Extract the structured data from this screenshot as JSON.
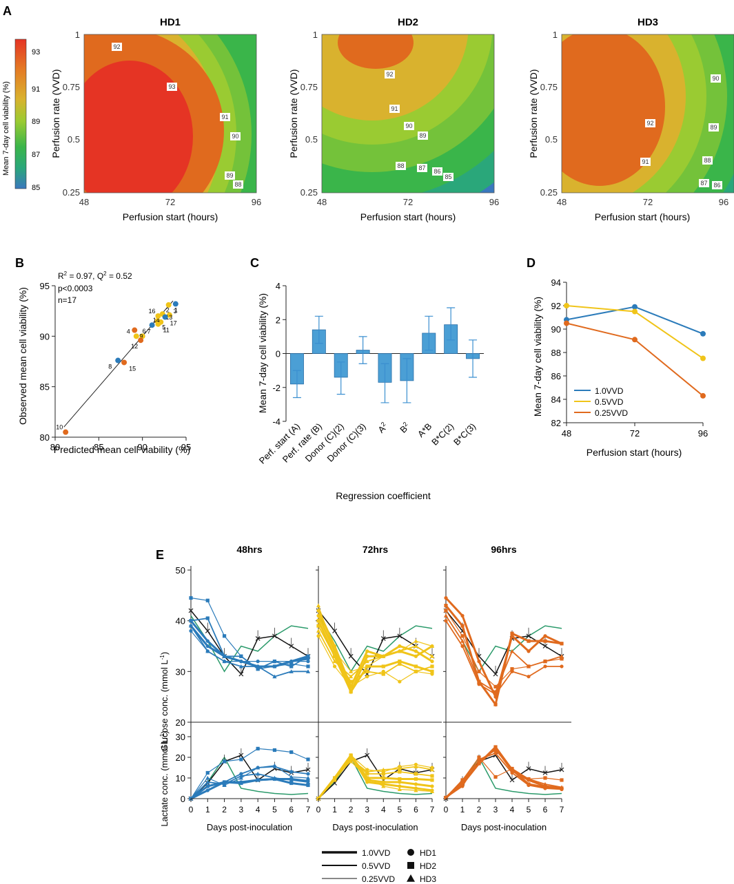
{
  "panels": {
    "A": "A",
    "B": "B",
    "C": "C",
    "D": "D",
    "E": "E"
  },
  "contour": {
    "colorbar": {
      "label": "Mean 7-day cell viability  (%)",
      "ticks": [
        "93",
        "91",
        "89",
        "87",
        "85"
      ],
      "colors": [
        "#e53424",
        "#e06a1e",
        "#d9b22e",
        "#9acb32",
        "#3ab54a",
        "#2aa77a",
        "#3a78bd"
      ]
    },
    "xlabel": "Perfusion start (hours)",
    "ylabel": "Perfusion rate (VVD)",
    "xticks": [
      "48",
      "72",
      "96"
    ],
    "yticks": [
      "1",
      "0.75",
      "0.5",
      "0.25"
    ],
    "plots": [
      {
        "title": "HD1",
        "labels": [
          "92",
          "93",
          "91",
          "90",
          "89",
          "88"
        ]
      },
      {
        "title": "HD2",
        "labels": [
          "92",
          "91",
          "90",
          "89",
          "88",
          "87",
          "86",
          "85"
        ]
      },
      {
        "title": "HD3",
        "labels": [
          "90",
          "92",
          "89",
          "91",
          "88",
          "87",
          "86"
        ]
      }
    ]
  },
  "chart_data": [
    {
      "type": "scatter",
      "panel": "B",
      "xlabel": "Predicted mean cell viability (%)",
      "ylabel": "Observed mean cell viability (%)",
      "xlim": [
        80,
        95
      ],
      "ylim": [
        80,
        95
      ],
      "xticks": [
        "80",
        "85",
        "90",
        "95"
      ],
      "yticks": [
        "80",
        "85",
        "90",
        "95"
      ],
      "annotations": [
        "R",
        "2",
        "= 0.97, Q",
        "2",
        "= 0.52",
        "p<0.0003",
        "n=17"
      ],
      "points": [
        {
          "id": "1",
          "x": 93.1,
          "y": 92.1,
          "color": "#f0c419"
        },
        {
          "id": "2",
          "x": 93.8,
          "y": 93.2,
          "color": "#2b7bba"
        },
        {
          "id": "3",
          "x": 93.0,
          "y": 93.1,
          "color": "#f0c419"
        },
        {
          "id": "4",
          "x": 89.3,
          "y": 90.0,
          "color": "#f0c419"
        },
        {
          "id": "5",
          "x": 91.7,
          "y": 91.5,
          "color": "#f0c419"
        },
        {
          "id": "6",
          "x": 91.1,
          "y": 91.1,
          "color": "#2b7bba"
        },
        {
          "id": "7",
          "x": 90.0,
          "y": 90.0,
          "color": "#f0c419"
        },
        {
          "id": "8",
          "x": 87.2,
          "y": 87.6,
          "color": "#2b7bba"
        },
        {
          "id": "9",
          "x": 89.1,
          "y": 90.6,
          "color": "#e06a1e"
        },
        {
          "id": "10",
          "x": 81.2,
          "y": 80.5,
          "color": "#e06a1e"
        },
        {
          "id": "11",
          "x": 91.8,
          "y": 91.2,
          "color": "#f0c419"
        },
        {
          "id": "12",
          "x": 89.8,
          "y": 89.6,
          "color": "#e06a1e"
        },
        {
          "id": "13",
          "x": 92.1,
          "y": 91.4,
          "color": "#f0c419"
        },
        {
          "id": "14",
          "x": 92.3,
          "y": 92.2,
          "color": "#f0c419"
        },
        {
          "id": "15",
          "x": 87.9,
          "y": 87.4,
          "color": "#e06a1e"
        },
        {
          "id": "16",
          "x": 91.8,
          "y": 92.0,
          "color": "#f0c419"
        },
        {
          "id": "17",
          "x": 92.6,
          "y": 91.9,
          "color": "#2b7bba"
        }
      ],
      "fit_line": [
        [
          81,
          81
        ],
        [
          93.5,
          93.5
        ]
      ]
    },
    {
      "type": "bar",
      "panel": "C",
      "xlabel": "Regression coefficient",
      "ylabel": "Mean 7-day cell viability (%)",
      "ylim": [
        -4,
        4
      ],
      "yticks": [
        "4",
        "2",
        "0",
        "-2",
        "-4"
      ],
      "categories": [
        "Perf. start (A)",
        "Perf. rate (B)",
        "Donor (C)(2)",
        "Donor (C)(3)",
        "A",
        "B",
        "A*B",
        "B*C(2)",
        "B*C(3)"
      ],
      "category_superscripts": [
        "",
        "",
        "",
        "",
        "2",
        "2",
        "",
        "",
        ""
      ],
      "values": [
        -1.8,
        1.4,
        -1.4,
        0.2,
        -1.7,
        -1.6,
        1.2,
        1.7,
        -0.3
      ],
      "err_low": [
        -2.6,
        0.6,
        -2.4,
        -0.6,
        -2.9,
        -2.9,
        0.2,
        0.8,
        -1.4
      ],
      "err_high": [
        -1.0,
        2.2,
        -0.5,
        1.0,
        -0.6,
        -0.3,
        2.2,
        2.7,
        0.8
      ],
      "color": "#4b9fd5"
    },
    {
      "type": "line",
      "panel": "D",
      "xlabel": "Perfusion start (hours)",
      "ylabel": "Mean 7-day cell viability (%)",
      "x": [
        48,
        72,
        96
      ],
      "ylim": [
        82,
        94
      ],
      "xticks": [
        "48",
        "72",
        "96"
      ],
      "yticks": [
        "94",
        "92",
        "90",
        "88",
        "86",
        "84",
        "82"
      ],
      "series": [
        {
          "name": "1.0VVD",
          "values": [
            90.8,
            91.9,
            89.6
          ],
          "color": "#2b7bba"
        },
        {
          "name": "0.5VVD",
          "values": [
            92.0,
            91.5,
            87.5
          ],
          "color": "#f0c419"
        },
        {
          "name": "0.25VVD",
          "values": [
            90.5,
            89.1,
            84.3
          ],
          "color": "#e06a1e"
        }
      ]
    },
    {
      "type": "line",
      "panel": "E",
      "xlabel": "Days post-inoculation",
      "rows": [
        {
          "ylabel": "Glucose conc. (mmol L",
          "ylabel_sup": "-1",
          "ylabel_end": ")",
          "ylim": [
            20,
            50
          ],
          "yticks": [
            "50",
            "40",
            "30",
            "20"
          ]
        },
        {
          "ylabel": "Lactate conc. (mmol L",
          "ylabel_sup": "-1",
          "ylabel_end": ")",
          "ylim": [
            0,
            35
          ],
          "yticks": [
            "30",
            "20",
            "10",
            "0"
          ]
        }
      ],
      "xticks": [
        "0",
        "1",
        "2",
        "3",
        "4",
        "5",
        "6",
        "7"
      ],
      "columns": [
        {
          "title": "48hrs",
          "color": "#2b7bba",
          "glucose": [
            {
              "m": "s",
              "w": 1.2,
              "v": [
                44.5,
                44,
                37,
                33,
                30.5,
                31,
                31.5,
                31
              ]
            },
            {
              "m": "c",
              "w": 3,
              "v": [
                40,
                36,
                33,
                32,
                31,
                31,
                32,
                33
              ]
            },
            {
              "m": "c",
              "w": 3,
              "v": [
                39,
                35,
                33,
                32,
                31,
                31,
                32,
                32.5
              ]
            },
            {
              "m": "t",
              "w": 1.8,
              "v": [
                39,
                34,
                32,
                31,
                31,
                29,
                30,
                30
              ]
            },
            {
              "m": "s",
              "w": 1.8,
              "v": [
                40,
                40.5,
                33,
                33,
                30.5,
                32,
                31,
                33
              ]
            },
            {
              "m": "c",
              "w": 1.2,
              "v": [
                38,
                34,
                32,
                32,
                32,
                32,
                32,
                32
              ]
            }
          ],
          "lactate": [
            {
              "m": "s",
              "w": 1.2,
              "v": [
                0,
                12.5,
                18,
                19,
                24.2,
                23.5,
                22.5,
                19
              ]
            },
            {
              "m": "c",
              "w": 1.8,
              "v": [
                0,
                6,
                8,
                12,
                15,
                15.5,
                13,
                12
              ]
            },
            {
              "m": "c",
              "w": 3,
              "v": [
                0,
                4,
                8,
                8,
                9,
                9.5,
                9.5,
                8.5
              ]
            },
            {
              "m": "s",
              "w": 3,
              "v": [
                0,
                6,
                8,
                7.5,
                9,
                9.5,
                7.5,
                6.5
              ]
            },
            {
              "m": "t",
              "w": 1.8,
              "v": [
                0,
                8,
                7,
                11,
                12,
                10,
                9,
                8
              ]
            },
            {
              "m": "t",
              "w": 1.2,
              "v": [
                0,
                10,
                6.5,
                10,
                15,
                16,
                10.5,
                10
              ]
            }
          ]
        },
        {
          "title": "72hrs",
          "color": "#f0c419",
          "glucose": [
            {
              "m": "c",
              "w": 3,
              "v": [
                42,
                35,
                27,
                34,
                33,
                34,
                33,
                35
              ]
            },
            {
              "m": "c",
              "w": 3,
              "v": [
                41,
                34,
                26,
                33,
                33,
                35,
                34,
                32
              ]
            },
            {
              "m": "s",
              "w": 3,
              "v": [
                40,
                33,
                26,
                31,
                31,
                32,
                31,
                30
              ]
            },
            {
              "m": "s",
              "w": 1.8,
              "v": [
                39,
                33,
                28,
                30,
                29.5,
                31.5,
                30,
                31
              ]
            },
            {
              "m": "t",
              "w": 1.8,
              "v": [
                38,
                32,
                29,
                32,
                33,
                34,
                35,
                33
              ]
            },
            {
              "m": "c",
              "w": 1.2,
              "v": [
                37,
                31,
                27,
                29,
                30,
                28,
                30,
                29.5
              ]
            },
            {
              "m": "t",
              "w": 1.2,
              "v": [
                43,
                34,
                30,
                31,
                33,
                34,
                36,
                35
              ]
            }
          ],
          "lactate": [
            {
              "m": "c",
              "w": 3,
              "v": [
                0,
                10,
                21,
                8,
                7,
                6,
                5,
                4
              ]
            },
            {
              "m": "c",
              "w": 3,
              "v": [
                0,
                10,
                20,
                9,
                8,
                8,
                7,
                6
              ]
            },
            {
              "m": "s",
              "w": 3,
              "v": [
                0,
                10,
                21,
                10,
                10,
                9.5,
                9.5,
                9
              ]
            },
            {
              "m": "s",
              "w": 1.8,
              "v": [
                0,
                9,
                20,
                12,
                12,
                13,
                12,
                11
              ]
            },
            {
              "m": "t",
              "w": 1.8,
              "v": [
                0,
                9,
                19,
                13,
                14,
                14.5,
                15.5,
                14
              ]
            },
            {
              "m": "c",
              "w": 1.2,
              "v": [
                0,
                10,
                21,
                14,
                13,
                15.5,
                16.5,
                15
              ]
            },
            {
              "m": "t",
              "w": 1.2,
              "v": [
                0,
                10,
                18,
                10,
                6,
                4.5,
                4,
                3.5
              ]
            }
          ]
        },
        {
          "title": "96hrs",
          "color": "#e06a1e",
          "glucose": [
            {
              "m": "c",
              "w": 3,
              "v": [
                44.5,
                41,
                32,
                25,
                37,
                34,
                37,
                35.5
              ]
            },
            {
              "m": "s",
              "w": 3,
              "v": [
                43,
                39,
                28,
                23.5,
                37.5,
                36,
                36,
                35.5
              ]
            },
            {
              "m": "t",
              "w": 1.8,
              "v": [
                41,
                36,
                28,
                26,
                34,
                31,
                32,
                33
              ]
            },
            {
              "m": "c",
              "w": 1.8,
              "v": [
                40,
                35,
                27.5,
                25.5,
                30,
                29,
                31,
                31
              ]
            },
            {
              "m": "s",
              "w": 1.2,
              "v": [
                42,
                37,
                30,
                27,
                30.5,
                31,
                32,
                32.5
              ]
            }
          ],
          "lactate": [
            {
              "m": "c",
              "w": 3,
              "v": [
                0.5,
                8,
                17,
                24.5,
                13.5,
                9,
                6,
                5
              ]
            },
            {
              "m": "s",
              "w": 3,
              "v": [
                0.5,
                7,
                17,
                25,
                14,
                7,
                5.5,
                5
              ]
            },
            {
              "m": "t",
              "w": 1.8,
              "v": [
                0.5,
                9,
                18.5,
                23.5,
                14.5,
                9.5,
                7,
                5.5
              ]
            },
            {
              "m": "c",
              "w": 1.8,
              "v": [
                0.5,
                6,
                19,
                22,
                12.5,
                6.5,
                5,
                4.5
              ]
            },
            {
              "m": "s",
              "w": 1.2,
              "v": [
                0.5,
                9,
                20,
                10.5,
                14.5,
                9.5,
                10,
                9
              ]
            }
          ]
        }
      ],
      "reference": {
        "glucose": {
          "black": [
            42,
            38,
            33,
            29.5,
            36.5,
            37,
            35,
            33
          ],
          "green": [
            41,
            36,
            30,
            35,
            34,
            37,
            39,
            38.5
          ]
        },
        "lactate": {
          "black": [
            0,
            7.5,
            18,
            21,
            9,
            14.5,
            12.5,
            14
          ],
          "green": [
            0,
            8,
            20,
            5,
            3.5,
            2.5,
            2,
            2.5
          ]
        }
      },
      "legend": {
        "lines": [
          {
            "label": "1.0VVD",
            "w": 3.5
          },
          {
            "label": "0.5VVD",
            "w": 2
          },
          {
            "label": "0.25VVD",
            "w": 1
          }
        ],
        "markers": [
          {
            "label": "HD1",
            "m": "c"
          },
          {
            "label": "HD2",
            "m": "s"
          },
          {
            "label": "HD3",
            "m": "t"
          }
        ]
      }
    }
  ]
}
